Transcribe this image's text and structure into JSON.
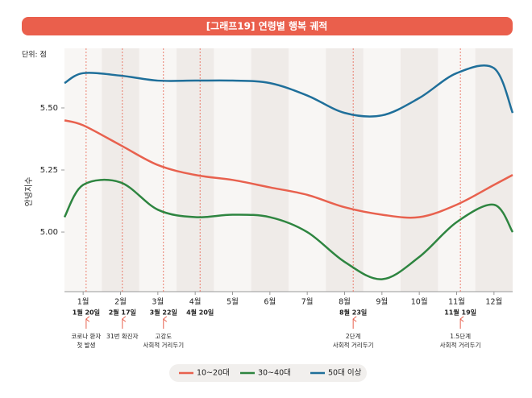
{
  "chart_data": {
    "type": "line",
    "title": "[그래프19] 연령별 행복 궤적",
    "unit_label": "단위: 점",
    "y_label": "안녕지수",
    "x": [
      0.5,
      1,
      2,
      3,
      4,
      5,
      6,
      7,
      8,
      9,
      10,
      11,
      12,
      12.5
    ],
    "xlim": [
      0.5,
      12.5
    ],
    "xticks": [
      {
        "value": 1,
        "label": "1월"
      },
      {
        "value": 2,
        "label": "2월"
      },
      {
        "value": 3,
        "label": "3월"
      },
      {
        "value": 4,
        "label": "4월"
      },
      {
        "value": 5,
        "label": "5월"
      },
      {
        "value": 6,
        "label": "6월"
      },
      {
        "value": 7,
        "label": "7월"
      },
      {
        "value": 8,
        "label": "8월"
      },
      {
        "value": 9,
        "label": "9월"
      },
      {
        "value": 10,
        "label": "10월"
      },
      {
        "value": 11,
        "label": "11월"
      },
      {
        "value": 12,
        "label": "12월"
      }
    ],
    "ylim": [
      4.76,
      5.74
    ],
    "yticks": [
      {
        "value": 5,
        "label": "5.00"
      },
      5.25,
      {
        "value": 5.5,
        "label": "5.50"
      }
    ],
    "series": [
      {
        "name": "10~20대",
        "color": "#e8614e",
        "values": [
          5.45,
          5.43,
          5.35,
          5.27,
          5.23,
          5.21,
          5.18,
          5.15,
          5.1,
          5.07,
          5.06,
          5.11,
          5.19,
          5.23
        ]
      },
      {
        "name": "30~40대",
        "color": "#2e8540",
        "values": [
          5.06,
          5.19,
          5.2,
          5.09,
          5.06,
          5.07,
          5.06,
          5.0,
          4.88,
          4.81,
          4.9,
          5.04,
          5.11,
          5.0
        ]
      },
      {
        "name": "50대 이상",
        "color": "#1f6f9a",
        "values": [
          5.6,
          5.64,
          5.63,
          5.61,
          5.61,
          5.61,
          5.6,
          5.55,
          5.48,
          5.47,
          5.54,
          5.64,
          5.66,
          5.48
        ]
      }
    ],
    "annotations": [
      {
        "x": 1.08,
        "date": "1월 20일",
        "text": [
          "코로나 환자",
          "첫 발생"
        ]
      },
      {
        "x": 2.05,
        "date": "2월 17일",
        "text": [
          "31번 확진자"
        ]
      },
      {
        "x": 3.15,
        "date": "3월 22일",
        "text": [
          "고강도",
          "사회적 거리두기"
        ]
      },
      {
        "x": 4.13,
        "date": "4월 20일",
        "text": []
      },
      {
        "x": 8.23,
        "date": "8월 23일",
        "text": [
          "2단계",
          "사회적 거리두기"
        ]
      },
      {
        "x": 11.1,
        "date": "11월 19일",
        "text": [
          "1.5단계",
          "사회적 거리두기"
        ]
      }
    ]
  }
}
